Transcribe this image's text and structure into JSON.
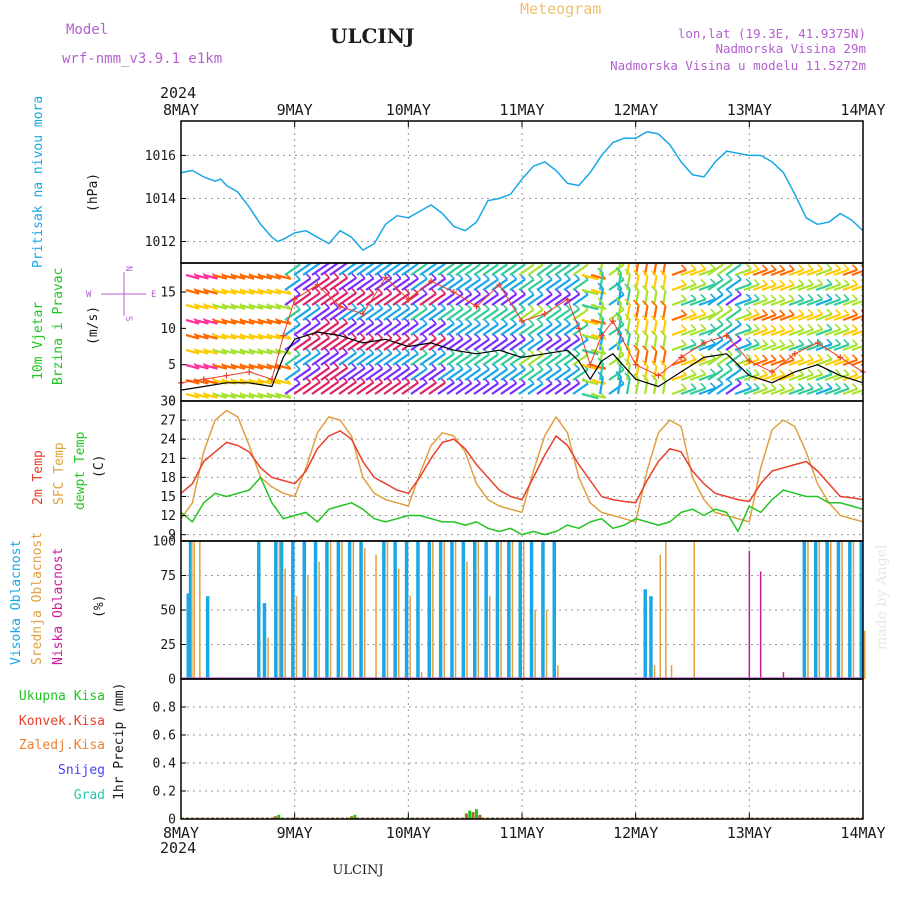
{
  "header": {
    "model_label": "Model",
    "model_name": "wrf-nmm_v3.9.1  e1km",
    "station_title": "ULCINJ",
    "meteogram_label": "Meteogram",
    "coords": "lon,lat (19.3E, 41.9375N)",
    "altitude": "Nadmorska Visina 29m",
    "model_altitude": "Nadmorska Visina u modelu 11.5272m",
    "credit": "made by Angel",
    "footer_station": "ULCINJ"
  },
  "colors": {
    "pressure": "#1aa7e6",
    "wind_speed": "#000000",
    "gust": "#e8402a",
    "temp2m": "#e8402a",
    "sfc_temp": "#e0a040",
    "dewpoint": "#22c422",
    "high_cloud": "#1aa7e6",
    "mid_cloud": "#e0a040",
    "low_cloud": "#cc1a99",
    "precip_total": "#22c422",
    "precip_conv": "#e8402a",
    "precip_frozen": "#ee8030",
    "snow": "#4444ff",
    "hail": "#22ccaa"
  },
  "time_axis": {
    "year": "2024",
    "ticks": [
      "8MAY",
      "9MAY",
      "10MAY",
      "11MAY",
      "12MAY",
      "13MAY",
      "14MAY"
    ]
  },
  "panels": {
    "pressure": {
      "label": "Pritisak na nivou mora",
      "unit": "(hPa)",
      "yticks": [
        "1012",
        "1014",
        "1016"
      ]
    },
    "wind": {
      "label1": "10m Vjetar",
      "label2": "Brzina i Pravac",
      "unit": "(m/s)",
      "yticks": [
        "0",
        "5",
        "10",
        "15"
      ],
      "compass": {
        "n": "N",
        "s": "S",
        "e": "E",
        "w": "W"
      }
    },
    "temperature": {
      "label1": "2m Temp",
      "label2": "SFC Temp",
      "label3": "dewpt Temp",
      "unit": "(C)",
      "yticks": [
        "9",
        "12",
        "15",
        "18",
        "21",
        "24",
        "27",
        "30"
      ]
    },
    "cloud": {
      "label1": "Visoka Oblacnost",
      "label2": "Srednja Oblacnost",
      "label3": "Niska Oblacnost",
      "unit": "(%)",
      "yticks": [
        "0",
        "25",
        "50",
        "75",
        "100"
      ]
    },
    "precip": {
      "labels": [
        "Ukupna Kisa",
        "Konvek.Kisa",
        "Zaledj.Kisa",
        "Snijeg",
        "Grad"
      ],
      "unit": "1hr Precip (mm)",
      "yticks": [
        "0",
        "0.2",
        "0.4",
        "0.6",
        "0.8"
      ]
    }
  },
  "chart_data": [
    {
      "type": "line",
      "title": "Pritisak na nivou mora",
      "ylabel": "(hPa)",
      "ylim": [
        1011.0,
        1017.6
      ],
      "x": [
        0,
        0.1,
        0.2,
        0.3,
        0.35,
        0.4,
        0.5,
        0.6,
        0.7,
        0.8,
        0.85,
        0.9,
        1.0,
        1.1,
        1.2,
        1.3,
        1.4,
        1.5,
        1.6,
        1.7,
        1.8,
        1.9,
        2.0,
        2.1,
        2.2,
        2.3,
        2.4,
        2.5,
        2.6,
        2.7,
        2.8,
        2.9,
        3.0,
        3.1,
        3.2,
        3.3,
        3.4,
        3.5,
        3.6,
        3.7,
        3.8,
        3.9,
        4.0,
        4.1,
        4.2,
        4.3,
        4.4,
        4.5,
        4.6,
        4.7,
        4.8,
        4.9,
        5.0,
        5.1,
        5.2,
        5.3,
        5.4,
        5.5,
        5.6,
        5.7,
        5.8,
        5.9,
        6.0
      ],
      "series": [
        {
          "values": [
            1015.2,
            1015.3,
            1015.0,
            1014.8,
            1014.9,
            1014.6,
            1014.3,
            1013.6,
            1012.8,
            1012.2,
            1012.0,
            1012.1,
            1012.4,
            1012.5,
            1012.2,
            1011.9,
            1012.5,
            1012.2,
            1011.6,
            1011.9,
            1012.8,
            1013.2,
            1013.1,
            1013.4,
            1013.7,
            1013.3,
            1012.7,
            1012.5,
            1012.9,
            1013.9,
            1014.0,
            1014.2,
            1014.9,
            1015.5,
            1015.7,
            1015.3,
            1014.7,
            1014.6,
            1015.2,
            1016.0,
            1016.6,
            1016.8,
            1016.8,
            1017.1,
            1017.0,
            1016.5,
            1015.7,
            1015.1,
            1015.0,
            1015.7,
            1016.2,
            1016.1,
            1016.0,
            1016.0,
            1015.7,
            1015.2,
            1014.2,
            1013.1,
            1012.8,
            1012.9,
            1013.3,
            1013.0,
            1012.5
          ]
        }
      ]
    },
    {
      "type": "line",
      "title": "10m Vjetar Brzina i Pravac",
      "ylabel": "(m/s)",
      "ylim": [
        0,
        19
      ],
      "x": [
        0,
        0.2,
        0.4,
        0.6,
        0.8,
        0.9,
        1.0,
        1.2,
        1.4,
        1.6,
        1.8,
        2.0,
        2.2,
        2.4,
        2.6,
        2.8,
        3.0,
        3.2,
        3.4,
        3.5,
        3.6,
        3.7,
        3.8,
        4.0,
        4.2,
        4.4,
        4.6,
        4.8,
        5.0,
        5.2,
        5.4,
        5.6,
        5.8,
        6.0
      ],
      "series": [
        {
          "values": [
            1.5,
            2.0,
            2.5,
            2.5,
            2.0,
            6.0,
            8.5,
            9.5,
            9.0,
            8.0,
            8.5,
            7.5,
            8.0,
            7.0,
            6.5,
            7.0,
            6.0,
            6.5,
            7.0,
            5.5,
            3.0,
            5.5,
            6.5,
            3.0,
            2.0,
            4.0,
            6.0,
            6.5,
            3.5,
            2.5,
            4.0,
            5.0,
            3.5,
            2.5
          ]
        },
        {
          "values": [
            2.5,
            3.0,
            3.5,
            4.0,
            3.0,
            9.0,
            14.0,
            16.0,
            13.0,
            12.0,
            17.0,
            14.0,
            16.5,
            15.0,
            13.0,
            16.0,
            11.0,
            12.0,
            14.0,
            10.0,
            5.0,
            9.0,
            11.0,
            5.0,
            3.5,
            6.0,
            8.0,
            9.0,
            5.5,
            4.0,
            6.5,
            8.0,
            6.0,
            4.0
          ]
        }
      ]
    },
    {
      "type": "line",
      "title": "2m Temp / SFC Temp / dewpt Temp",
      "ylabel": "(C)",
      "ylim": [
        8,
        30
      ],
      "x": [
        0,
        0.1,
        0.2,
        0.3,
        0.4,
        0.5,
        0.6,
        0.7,
        0.8,
        0.9,
        1.0,
        1.1,
        1.2,
        1.3,
        1.4,
        1.5,
        1.6,
        1.7,
        1.8,
        1.9,
        2.0,
        2.1,
        2.2,
        2.3,
        2.4,
        2.5,
        2.6,
        2.7,
        2.8,
        2.9,
        3.0,
        3.1,
        3.2,
        3.3,
        3.4,
        3.5,
        3.6,
        3.7,
        3.8,
        3.9,
        4.0,
        4.1,
        4.2,
        4.3,
        4.4,
        4.5,
        4.6,
        4.7,
        4.8,
        4.9,
        5.0,
        5.1,
        5.2,
        5.3,
        5.4,
        5.5,
        5.6,
        5.7,
        5.8,
        5.9,
        6.0
      ],
      "series": [
        {
          "values": [
            15.5,
            17.0,
            20.5,
            22.0,
            23.5,
            23.0,
            22.0,
            19.5,
            18.0,
            17.5,
            17.0,
            19.0,
            22.5,
            24.5,
            25.3,
            24.0,
            20.5,
            18.0,
            17.0,
            16.0,
            15.5,
            18.0,
            21.0,
            23.5,
            24.0,
            22.5,
            20.0,
            18.0,
            16.0,
            15.0,
            14.5,
            18.0,
            21.5,
            24.5,
            23.0,
            20.0,
            17.5,
            15.0,
            14.5,
            14.2,
            14.0,
            17.5,
            20.5,
            22.5,
            22.0,
            19.0,
            17.0,
            15.5,
            15.0,
            14.5,
            14.2,
            17.0,
            19.0,
            19.5,
            20.0,
            20.5,
            19.0,
            17.0,
            15.0,
            14.8,
            14.5
          ]
        },
        {
          "values": [
            11.5,
            14.0,
            22.0,
            27.0,
            28.5,
            27.5,
            23.0,
            18.0,
            16.5,
            15.5,
            15.0,
            19.5,
            25.0,
            27.5,
            27.0,
            24.5,
            18.0,
            15.5,
            14.5,
            14.0,
            13.5,
            18.5,
            23.0,
            25.0,
            24.5,
            22.0,
            17.0,
            14.5,
            13.5,
            13.0,
            12.5,
            19.0,
            24.5,
            27.5,
            25.0,
            18.0,
            14.0,
            12.5,
            12.0,
            11.5,
            11.0,
            19.0,
            25.0,
            27.0,
            26.0,
            18.0,
            14.5,
            12.5,
            12.0,
            11.5,
            11.0,
            19.5,
            25.5,
            27.0,
            26.0,
            22.0,
            17.0,
            14.0,
            12.0,
            11.5,
            11.0
          ]
        },
        {
          "values": [
            12.5,
            11.0,
            14.0,
            15.5,
            15.0,
            15.5,
            16.0,
            18.0,
            14.0,
            11.5,
            12.0,
            12.5,
            11.0,
            13.0,
            13.5,
            14.0,
            13.0,
            11.5,
            11.0,
            11.5,
            12.0,
            12.0,
            11.5,
            11.0,
            11.0,
            10.5,
            11.0,
            10.0,
            9.5,
            10.0,
            9.0,
            9.5,
            9.0,
            9.5,
            10.5,
            10.0,
            11.0,
            11.5,
            10.0,
            10.5,
            11.5,
            11.0,
            10.5,
            11.0,
            12.5,
            13.0,
            12.0,
            13.0,
            12.5,
            9.5,
            13.5,
            12.5,
            14.5,
            16.0,
            15.5,
            15.0,
            15.0,
            14.0,
            14.0,
            13.5,
            13.0
          ]
        }
      ]
    },
    {
      "type": "bar",
      "title": "Visoka / Srednja / Niska Oblacnost",
      "ylabel": "(%)",
      "ylim": [
        0,
        100
      ],
      "x": [
        0.08,
        0.1,
        0.15,
        0.25,
        0.7,
        0.75,
        0.85,
        0.9,
        1.0,
        1.1,
        1.2,
        1.3,
        1.4,
        1.5,
        1.6,
        1.7,
        1.8,
        1.9,
        2.0,
        2.1,
        2.2,
        2.3,
        2.4,
        2.5,
        2.6,
        2.7,
        2.8,
        2.9,
        3.0,
        3.1,
        3.2,
        3.3,
        4.1,
        4.15,
        4.2,
        4.25,
        4.3,
        4.5,
        5.0,
        5.1,
        5.3,
        5.5,
        5.6,
        5.7,
        5.8,
        5.9,
        6.0
      ],
      "series": [
        {
          "values": [
            62,
            100,
            0,
            60,
            100,
            55,
            100,
            100,
            100,
            100,
            100,
            100,
            100,
            100,
            100,
            0,
            100,
            100,
            100,
            100,
            100,
            100,
            100,
            100,
            100,
            100,
            100,
            100,
            100,
            100,
            100,
            100,
            65,
            60,
            0,
            0,
            0,
            0,
            0,
            0,
            0,
            100,
            100,
            100,
            100,
            100,
            100
          ]
        },
        {
          "values": [
            100,
            100,
            100,
            0,
            0,
            30,
            100,
            80,
            60,
            75,
            85,
            100,
            100,
            100,
            95,
            90,
            100,
            80,
            60,
            5,
            100,
            100,
            100,
            85,
            100,
            60,
            100,
            100,
            100,
            50,
            50,
            10,
            0,
            10,
            90,
            100,
            10,
            100,
            0,
            0,
            0,
            100,
            100,
            100,
            100,
            100,
            35
          ]
        },
        {
          "values": [
            0,
            0,
            0,
            0,
            0,
            0,
            0,
            0,
            0,
            0,
            0,
            0,
            0,
            0,
            0,
            0,
            0,
            0,
            0,
            0,
            0,
            0,
            0,
            0,
            0,
            0,
            0,
            0,
            0,
            0,
            0,
            0,
            0,
            0,
            0,
            0,
            0,
            0,
            93,
            78,
            5,
            0,
            0,
            0,
            0,
            0,
            0
          ]
        }
      ]
    },
    {
      "type": "bar",
      "title": "1hr Precip",
      "ylabel": "1hr Precip (mm)",
      "ylim": [
        0,
        1
      ],
      "x": [
        0.83,
        0.86,
        1.5,
        1.53,
        2.51,
        2.54,
        2.57,
        2.6,
        2.63
      ],
      "series": [
        {
          "values": [
            0.02,
            0.03,
            0.02,
            0.03,
            0.04,
            0.06,
            0.05,
            0.07,
            0.03
          ]
        }
      ]
    }
  ]
}
